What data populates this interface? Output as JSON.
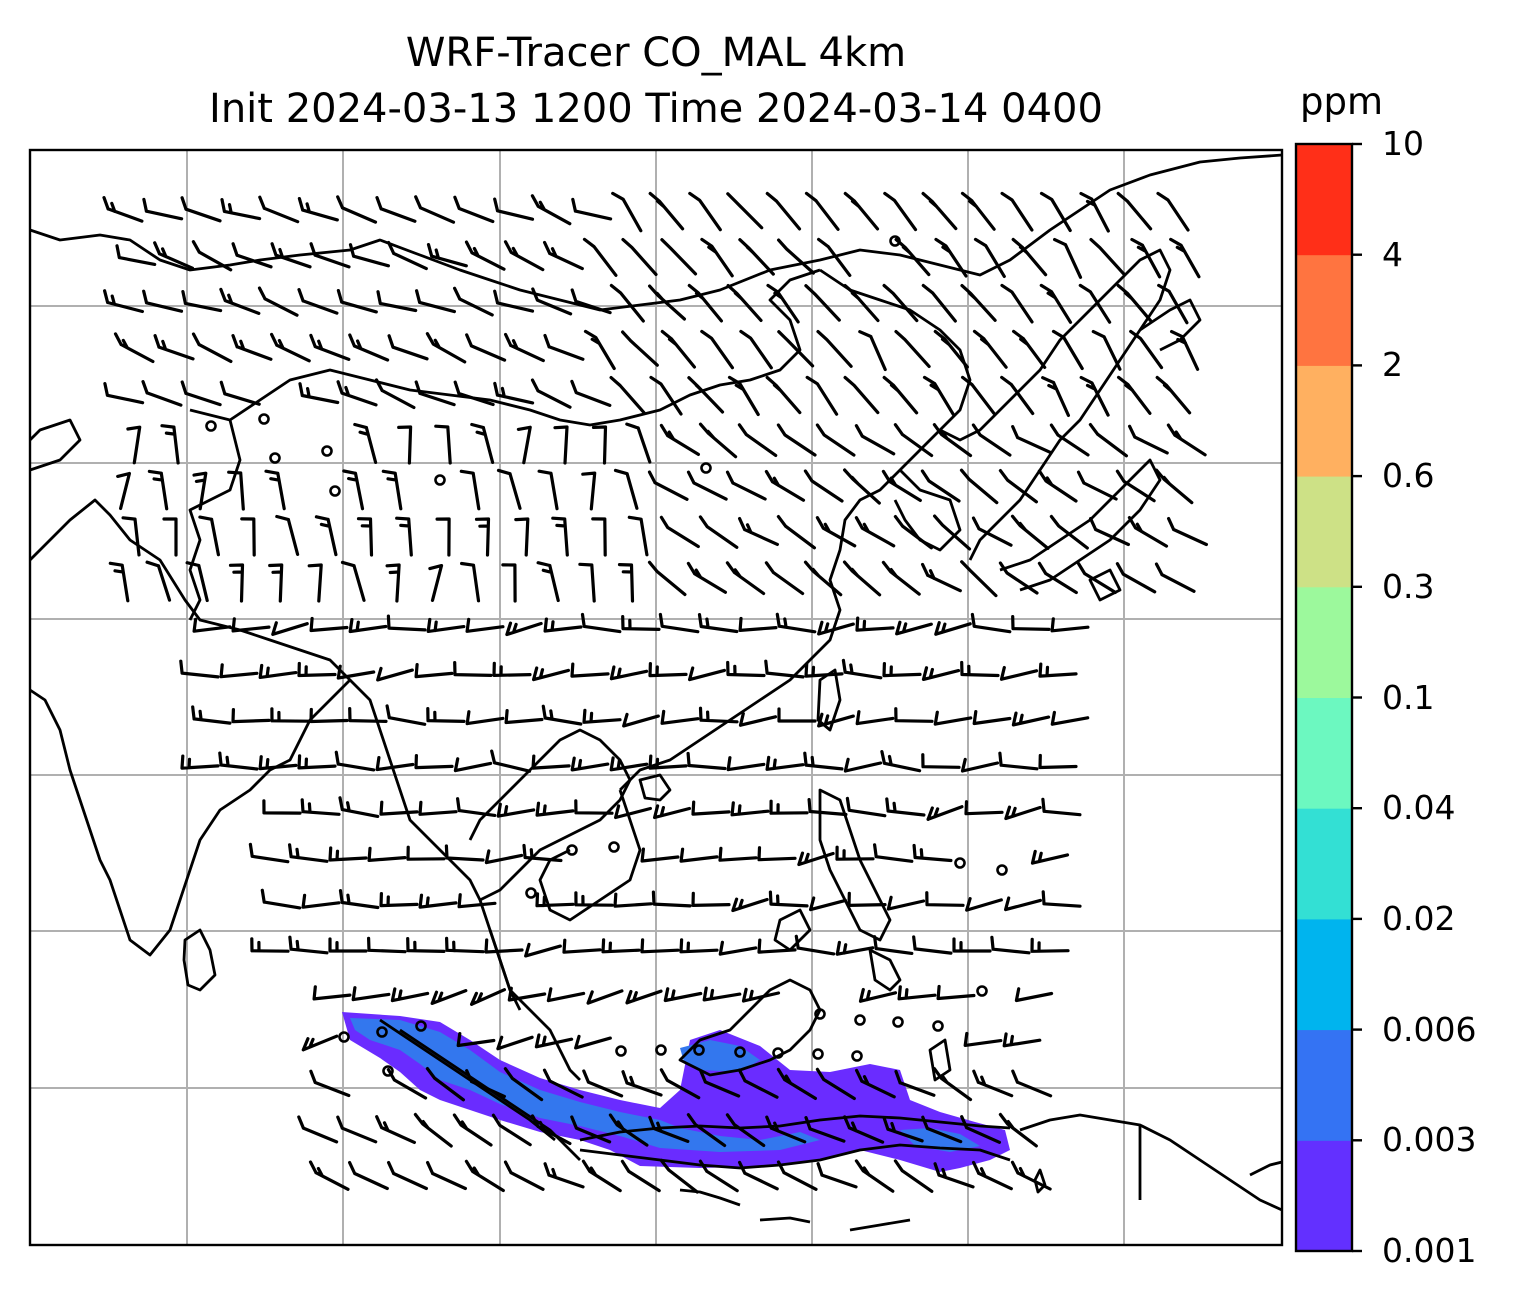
{
  "title": {
    "line1": "WRF-Tracer CO_MAL 4km",
    "line2": "Init 2024-03-13 1200 Time 2024-03-14 0400"
  },
  "map": {
    "projection": "lat-lon with gridlines",
    "gridlines": true,
    "coastlines": true,
    "wind_barbs": true,
    "tracer_field_color_low": "#6a2cff",
    "tracer_field_color_mid": "#3377ee"
  },
  "colorbar": {
    "unit": "ppm",
    "tick_labels": [
      "10",
      "4",
      "2",
      "0.6",
      "0.3",
      "0.1",
      "0.04",
      "0.02",
      "0.006",
      "0.003",
      "0.001"
    ],
    "bins": [
      {
        "from": "0.001",
        "to": "0.003",
        "color": "#6330ff"
      },
      {
        "from": "0.003",
        "to": "0.006",
        "color": "#3473f3"
      },
      {
        "from": "0.006",
        "to": "0.02",
        "color": "#00b4ee"
      },
      {
        "from": "0.02",
        "to": "0.04",
        "color": "#33e0d4"
      },
      {
        "from": "0.04",
        "to": "0.1",
        "color": "#6cf8c0"
      },
      {
        "from": "0.1",
        "to": "0.3",
        "color": "#9cf99c"
      },
      {
        "from": "0.3",
        "to": "0.6",
        "color": "#cde186"
      },
      {
        "from": "0.6",
        "to": "2",
        "color": "#ffb060"
      },
      {
        "from": "2",
        "to": "4",
        "color": "#ff7440"
      },
      {
        "from": "4",
        "to": "10",
        "color": "#ff2f18"
      }
    ]
  }
}
